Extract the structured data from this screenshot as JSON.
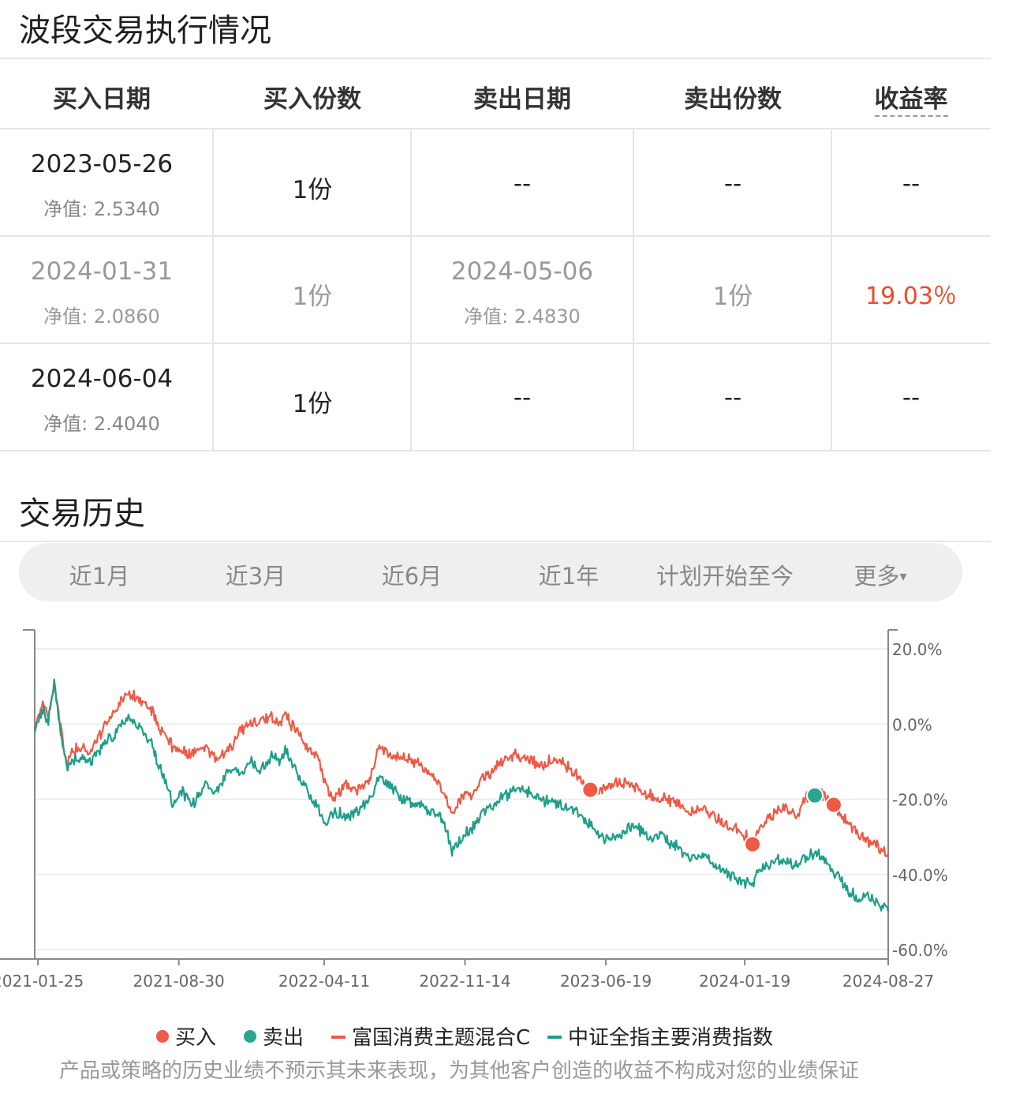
{
  "section1": {
    "title": "波段交易执行情况"
  },
  "table": {
    "headers": [
      "买入日期",
      "买入份数",
      "卖出日期",
      "卖出份数",
      "收益率"
    ],
    "rows": [
      {
        "buy_date": "2023-05-26",
        "buy_nav": "净值: 2.5340",
        "buy_qty": "1份",
        "sell_date": "--",
        "sell_nav": "",
        "sell_qty": "--",
        "rate": "--",
        "disabled": false
      },
      {
        "buy_date": "2024-01-31",
        "buy_nav": "净值: 2.0860",
        "buy_qty": "1份",
        "sell_date": "2024-05-06",
        "sell_nav": "净值: 2.4830",
        "sell_qty": "1份",
        "rate": "19.03％",
        "disabled": true
      },
      {
        "buy_date": "2024-06-04",
        "buy_nav": "净值: 2.4040",
        "buy_qty": "1份",
        "sell_date": "--",
        "sell_nav": "",
        "sell_qty": "--",
        "rate": "--",
        "disabled": false
      }
    ]
  },
  "section2": {
    "title": "交易历史"
  },
  "tabs": [
    "近1月",
    "近3月",
    "近6月",
    "近1年",
    "计划开始至今",
    "更多"
  ],
  "more_caret": "▾",
  "colors": {
    "fund": "#ee5a45",
    "index": "#1f9e8a",
    "buy": "#ee5a45",
    "sell": "#2aa58e",
    "grid": "#e8e8e8",
    "axis": "#888888"
  },
  "chart_data": {
    "type": "line",
    "x_ticks": [
      "2021-01-25",
      "2021-08-30",
      "2022-04-11",
      "2022-11-14",
      "2023-06-19",
      "2024-01-19",
      "2024-08-27"
    ],
    "x_range": [
      "2021-01-20",
      "2024-08-27"
    ],
    "y_ticks": [
      "20.0%",
      "0.0%",
      "-20.0%",
      "-40.0%",
      "-60.0%"
    ],
    "ylim": [
      -60,
      20
    ],
    "y_axis_side": "right",
    "legend_position": "bottom",
    "grid": true,
    "legend": [
      "买入",
      "卖出",
      "富国消费主题混合C",
      "中证全指主要消费指数"
    ],
    "series": [
      {
        "name": "富国消费主题混合C",
        "points": [
          [
            "2021-01-20",
            0
          ],
          [
            "2021-02-03",
            6
          ],
          [
            "2021-02-10",
            2
          ],
          [
            "2021-02-19",
            10
          ],
          [
            "2021-03-01",
            -1
          ],
          [
            "2021-03-10",
            -11
          ],
          [
            "2021-03-25",
            -6
          ],
          [
            "2021-04-15",
            -8
          ],
          [
            "2021-05-05",
            -1
          ],
          [
            "2021-05-25",
            4
          ],
          [
            "2021-06-10",
            8
          ],
          [
            "2021-06-25",
            7
          ],
          [
            "2021-07-10",
            5
          ],
          [
            "2021-07-22",
            3
          ],
          [
            "2021-07-30",
            -1
          ],
          [
            "2021-08-15",
            -5
          ],
          [
            "2021-09-01",
            -7
          ],
          [
            "2021-09-20",
            -8
          ],
          [
            "2021-10-10",
            -6
          ],
          [
            "2021-10-25",
            -9
          ],
          [
            "2021-11-15",
            -7
          ],
          [
            "2021-12-01",
            -2
          ],
          [
            "2021-12-20",
            0
          ],
          [
            "2022-01-05",
            1
          ],
          [
            "2022-01-20",
            2
          ],
          [
            "2022-02-01",
            0
          ],
          [
            "2022-02-10",
            2
          ],
          [
            "2022-03-01",
            -2
          ],
          [
            "2022-03-15",
            -6
          ],
          [
            "2022-04-01",
            -9
          ],
          [
            "2022-04-15",
            -17
          ],
          [
            "2022-04-26",
            -20
          ],
          [
            "2022-05-15",
            -16
          ],
          [
            "2022-06-01",
            -18
          ],
          [
            "2022-06-20",
            -15
          ],
          [
            "2022-07-05",
            -6
          ],
          [
            "2022-07-20",
            -8
          ],
          [
            "2022-08-10",
            -9
          ],
          [
            "2022-09-01",
            -10
          ],
          [
            "2022-09-20",
            -13
          ],
          [
            "2022-10-10",
            -17
          ],
          [
            "2022-10-25",
            -24
          ],
          [
            "2022-11-10",
            -19
          ],
          [
            "2022-11-25",
            -19
          ],
          [
            "2022-12-10",
            -15
          ],
          [
            "2023-01-01",
            -12
          ],
          [
            "2023-01-15",
            -9
          ],
          [
            "2023-02-01",
            -8
          ],
          [
            "2023-02-20",
            -9
          ],
          [
            "2023-03-10",
            -11
          ],
          [
            "2023-03-25",
            -10
          ],
          [
            "2023-04-10",
            -9
          ],
          [
            "2023-04-25",
            -12
          ],
          [
            "2023-05-26",
            -17.5
          ],
          [
            "2023-06-10",
            -18
          ],
          [
            "2023-06-25",
            -16
          ],
          [
            "2023-07-10",
            -15
          ],
          [
            "2023-08-01",
            -17
          ],
          [
            "2023-08-25",
            -19
          ],
          [
            "2023-09-15",
            -20
          ],
          [
            "2023-10-10",
            -21
          ],
          [
            "2023-10-25",
            -24
          ],
          [
            "2023-11-15",
            -22
          ],
          [
            "2023-12-05",
            -25
          ],
          [
            "2023-12-25",
            -27
          ],
          [
            "2024-01-15",
            -29
          ],
          [
            "2024-01-31",
            -32
          ],
          [
            "2024-02-10",
            -28
          ],
          [
            "2024-03-01",
            -24
          ],
          [
            "2024-03-20",
            -22
          ],
          [
            "2024-04-10",
            -24
          ],
          [
            "2024-04-20",
            -20
          ],
          [
            "2024-05-06",
            -19
          ],
          [
            "2024-05-15",
            -18
          ],
          [
            "2024-06-04",
            -21.5
          ],
          [
            "2024-06-20",
            -25
          ],
          [
            "2024-07-10",
            -29
          ],
          [
            "2024-07-25",
            -31
          ],
          [
            "2024-08-10",
            -32
          ],
          [
            "2024-08-27",
            -35
          ]
        ]
      },
      {
        "name": "中证全指主要消费指数",
        "points": [
          [
            "2021-01-20",
            -1
          ],
          [
            "2021-02-03",
            4
          ],
          [
            "2021-02-10",
            0
          ],
          [
            "2021-02-19",
            12
          ],
          [
            "2021-03-01",
            -2
          ],
          [
            "2021-03-10",
            -12
          ],
          [
            "2021-03-25",
            -9
          ],
          [
            "2021-04-15",
            -10
          ],
          [
            "2021-05-05",
            -6
          ],
          [
            "2021-05-25",
            -2
          ],
          [
            "2021-06-10",
            2
          ],
          [
            "2021-06-25",
            0
          ],
          [
            "2021-07-10",
            -3
          ],
          [
            "2021-07-22",
            -6
          ],
          [
            "2021-07-30",
            -11
          ],
          [
            "2021-08-10",
            -15
          ],
          [
            "2021-08-20",
            -21
          ],
          [
            "2021-09-05",
            -18
          ],
          [
            "2021-09-20",
            -22
          ],
          [
            "2021-10-10",
            -16
          ],
          [
            "2021-10-25",
            -19
          ],
          [
            "2021-11-15",
            -12
          ],
          [
            "2021-12-01",
            -13
          ],
          [
            "2021-12-20",
            -10
          ],
          [
            "2022-01-05",
            -12
          ],
          [
            "2022-01-20",
            -8
          ],
          [
            "2022-02-01",
            -10
          ],
          [
            "2022-02-10",
            -7
          ],
          [
            "2022-03-01",
            -13
          ],
          [
            "2022-03-15",
            -18
          ],
          [
            "2022-04-01",
            -22
          ],
          [
            "2022-04-15",
            -27
          ],
          [
            "2022-04-26",
            -23
          ],
          [
            "2022-05-15",
            -25
          ],
          [
            "2022-06-01",
            -23
          ],
          [
            "2022-06-20",
            -20
          ],
          [
            "2022-07-05",
            -14
          ],
          [
            "2022-07-20",
            -16
          ],
          [
            "2022-08-10",
            -20
          ],
          [
            "2022-09-01",
            -21
          ],
          [
            "2022-09-20",
            -23
          ],
          [
            "2022-10-10",
            -25
          ],
          [
            "2022-10-25",
            -34
          ],
          [
            "2022-11-10",
            -30
          ],
          [
            "2022-11-25",
            -28
          ],
          [
            "2022-12-10",
            -24
          ],
          [
            "2023-01-01",
            -21
          ],
          [
            "2023-01-15",
            -19
          ],
          [
            "2023-02-01",
            -17
          ],
          [
            "2023-02-20",
            -18
          ],
          [
            "2023-03-10",
            -20
          ],
          [
            "2023-03-25",
            -21
          ],
          [
            "2023-04-10",
            -21
          ],
          [
            "2023-04-25",
            -23
          ],
          [
            "2023-05-26",
            -26
          ],
          [
            "2023-06-10",
            -30
          ],
          [
            "2023-06-25",
            -31
          ],
          [
            "2023-07-10",
            -30
          ],
          [
            "2023-08-01",
            -27
          ],
          [
            "2023-08-25",
            -30
          ],
          [
            "2023-09-15",
            -30
          ],
          [
            "2023-10-10",
            -33
          ],
          [
            "2023-10-25",
            -36
          ],
          [
            "2023-11-15",
            -35
          ],
          [
            "2023-12-05",
            -38
          ],
          [
            "2023-12-25",
            -40
          ],
          [
            "2024-01-15",
            -42
          ],
          [
            "2024-01-31",
            -43
          ],
          [
            "2024-02-10",
            -39
          ],
          [
            "2024-03-01",
            -37
          ],
          [
            "2024-03-20",
            -36
          ],
          [
            "2024-04-10",
            -38
          ],
          [
            "2024-04-20",
            -36
          ],
          [
            "2024-05-06",
            -34
          ],
          [
            "2024-05-15",
            -35
          ],
          [
            "2024-06-04",
            -39
          ],
          [
            "2024-06-20",
            -43
          ],
          [
            "2024-07-10",
            -46
          ],
          [
            "2024-07-25",
            -46
          ],
          [
            "2024-08-10",
            -47
          ],
          [
            "2024-08-27",
            -50
          ]
        ]
      }
    ],
    "buy_points": [
      [
        "2023-05-26",
        -17.5
      ],
      [
        "2024-01-31",
        -32
      ],
      [
        "2024-06-04",
        -21.5
      ]
    ],
    "sell_points": [
      [
        "2024-05-06",
        -19
      ]
    ]
  },
  "disclaimer": "产品或策略的历史业绩不预示其未来表现，为其他客户创造的收益不构成对您的业绩保证"
}
